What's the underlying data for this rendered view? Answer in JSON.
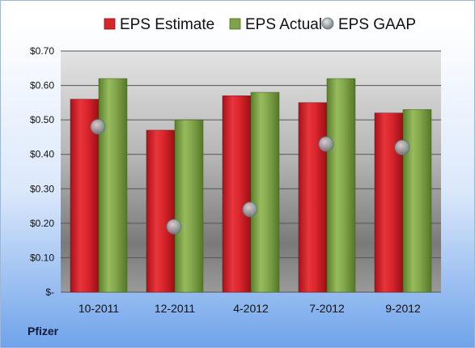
{
  "company": "Pfizer",
  "chart_data": {
    "type": "bar",
    "categories": [
      "10-2011",
      "12-2011",
      "4-2012",
      "7-2012",
      "9-2012"
    ],
    "series": [
      {
        "name": "EPS Estimate",
        "type": "bar",
        "values": [
          0.56,
          0.47,
          0.57,
          0.55,
          0.52
        ],
        "color": "#d9262c"
      },
      {
        "name": "EPS Actual",
        "type": "bar",
        "values": [
          0.62,
          0.5,
          0.58,
          0.62,
          0.53
        ],
        "color": "#7fa34a"
      },
      {
        "name": "EPS GAAP",
        "type": "scatter",
        "values": [
          0.48,
          0.19,
          0.24,
          0.43,
          0.42
        ],
        "color": "#9aa3ad"
      }
    ],
    "y_ticks": [
      {
        "value": 0,
        "label": "$-"
      },
      {
        "value": 0.1,
        "label": "$0.10"
      },
      {
        "value": 0.2,
        "label": "$0.20"
      },
      {
        "value": 0.3,
        "label": "$0.30"
      },
      {
        "value": 0.4,
        "label": "$0.40"
      },
      {
        "value": 0.5,
        "label": "$0.50"
      },
      {
        "value": 0.6,
        "label": "$0.60"
      },
      {
        "value": 0.7,
        "label": "$0.70"
      }
    ],
    "ylim": [
      0,
      0.7
    ],
    "grid": true,
    "legend": "top"
  }
}
